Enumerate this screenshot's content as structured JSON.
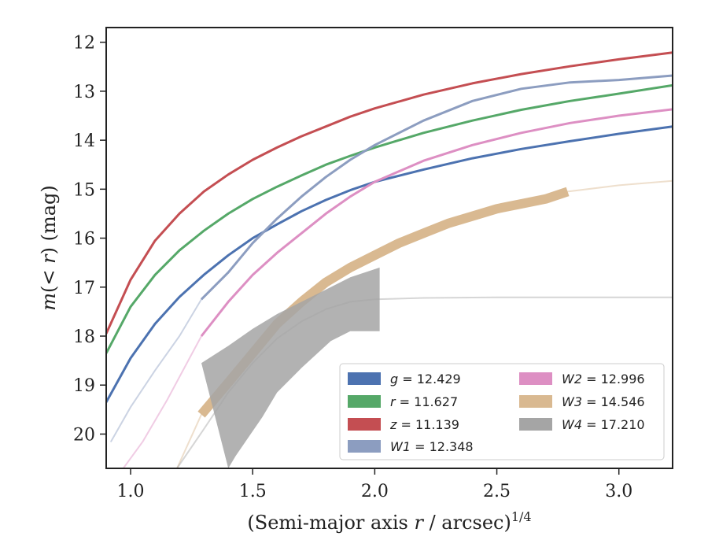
{
  "chart_data": {
    "type": "line",
    "xlabel": "(Semi-major axis r / arcsec)^{1/4}",
    "xlabel_parts": {
      "main": "(Semi-major axis ",
      "var": "r",
      "tail": " / arcsec)",
      "sup": "1/4"
    },
    "ylabel": "m(< r) (mag)",
    "ylabel_parts": {
      "m": "m",
      "open": "(",
      "lt": "< ",
      "var": "r",
      "close": ")",
      "unit": " (mag)"
    },
    "xlim": [
      0.9,
      3.22
    ],
    "ylim": [
      20.7,
      11.7
    ],
    "y_inverted": true,
    "xticks": [
      1.0,
      1.5,
      2.0,
      2.5,
      3.0
    ],
    "xtick_labels": [
      "1.0",
      "1.5",
      "2.0",
      "2.5",
      "3.0"
    ],
    "yticks": [
      12,
      13,
      14,
      15,
      16,
      17,
      18,
      19,
      20
    ],
    "ytick_labels": [
      "12",
      "13",
      "14",
      "15",
      "16",
      "17",
      "18",
      "19",
      "20"
    ],
    "grid": false,
    "legend_position": "lower-right",
    "series": [
      {
        "name": "g",
        "label": "g = 12.429",
        "color": "#4c72b0",
        "band_width": 3,
        "x": [
          0.9,
          1.0,
          1.1,
          1.2,
          1.3,
          1.4,
          1.5,
          1.6,
          1.7,
          1.8,
          1.9,
          2.0,
          2.2,
          2.4,
          2.6,
          2.8,
          3.0,
          3.22
        ],
        "y": [
          19.35,
          18.45,
          17.75,
          17.2,
          16.75,
          16.35,
          16.0,
          15.72,
          15.45,
          15.22,
          15.02,
          14.85,
          14.6,
          14.37,
          14.18,
          14.02,
          13.87,
          13.72
        ],
        "faint_x": [],
        "faint_y": []
      },
      {
        "name": "r",
        "label": "r = 11.627",
        "color": "#55a868",
        "band_width": 3,
        "x": [
          0.9,
          1.0,
          1.1,
          1.2,
          1.3,
          1.4,
          1.5,
          1.6,
          1.7,
          1.8,
          1.9,
          2.0,
          2.2,
          2.4,
          2.6,
          2.8,
          3.0,
          3.22
        ],
        "y": [
          18.35,
          17.4,
          16.75,
          16.25,
          15.85,
          15.5,
          15.2,
          14.95,
          14.72,
          14.5,
          14.32,
          14.15,
          13.85,
          13.6,
          13.38,
          13.2,
          13.05,
          12.88
        ],
        "faint_x": [],
        "faint_y": []
      },
      {
        "name": "z",
        "label": "z = 11.139",
        "color": "#c44e52",
        "band_width": 3,
        "x": [
          0.9,
          1.0,
          1.1,
          1.2,
          1.3,
          1.4,
          1.5,
          1.6,
          1.7,
          1.8,
          1.9,
          2.0,
          2.2,
          2.4,
          2.6,
          2.8,
          3.0,
          3.22
        ],
        "y": [
          17.95,
          16.85,
          16.05,
          15.5,
          15.05,
          14.7,
          14.4,
          14.15,
          13.92,
          13.72,
          13.52,
          13.35,
          13.07,
          12.84,
          12.65,
          12.49,
          12.35,
          12.21
        ],
        "faint_x": [],
        "faint_y": []
      },
      {
        "name": "W1",
        "label": "W1 = 12.348",
        "color": "#8c9dc0",
        "band_width": 3,
        "x": [
          1.29,
          1.4,
          1.5,
          1.6,
          1.7,
          1.8,
          1.9,
          2.0,
          2.2,
          2.4,
          2.6,
          2.8,
          3.0,
          3.22
        ],
        "y": [
          17.25,
          16.7,
          16.1,
          15.6,
          15.15,
          14.75,
          14.4,
          14.1,
          13.6,
          13.2,
          13.2,
          13.0,
          12.85,
          12.7
        ],
        "y_fix": [
          17.25,
          16.7,
          16.1,
          15.6,
          15.15,
          14.75,
          14.4,
          14.1,
          13.6,
          13.2,
          12.95,
          12.82,
          12.77,
          12.68
        ],
        "faint_x": [
          0.92,
          1.0,
          1.1,
          1.2,
          1.29
        ],
        "faint_y": [
          20.15,
          19.45,
          18.7,
          18.0,
          17.25
        ]
      },
      {
        "name": "W2",
        "label": "W2 = 12.996",
        "color": "#dd8fc3",
        "band_width": 3,
        "x": [
          1.29,
          1.4,
          1.5,
          1.6,
          1.7,
          1.8,
          1.9,
          2.0,
          2.2,
          2.4,
          2.6,
          2.8,
          3.0,
          3.22
        ],
        "y": [
          18.0,
          17.3,
          16.75,
          16.3,
          15.9,
          15.5,
          15.15,
          14.85,
          14.42,
          14.1,
          13.85,
          13.65,
          13.5,
          13.37
        ],
        "faint_x": [
          0.97,
          1.05,
          1.15,
          1.22,
          1.29
        ],
        "faint_y": [
          20.7,
          20.15,
          19.3,
          18.65,
          18.0
        ]
      },
      {
        "name": "W3",
        "label": "W3 = 14.546",
        "color": "#d9b991",
        "band_width": 12,
        "x": [
          1.29,
          1.4,
          1.5,
          1.6,
          1.7,
          1.8,
          1.9,
          2.0,
          2.1,
          2.2,
          2.3,
          2.4,
          2.5,
          2.6,
          2.7,
          2.79
        ],
        "y": [
          19.6,
          18.95,
          18.35,
          17.75,
          17.3,
          16.9,
          16.6,
          16.35,
          16.1,
          15.9,
          15.7,
          15.55,
          15.4,
          15.3,
          15.2,
          15.05
        ],
        "faint_x": [
          1.19,
          1.29,
          1.4,
          1.5,
          1.6,
          1.7,
          1.8,
          1.9,
          2.0,
          2.1,
          2.2,
          2.3,
          2.4,
          2.5,
          2.6,
          2.79,
          3.0,
          3.22
        ],
        "faint_y": [
          20.7,
          19.6,
          18.95,
          18.35,
          17.75,
          17.3,
          16.9,
          16.6,
          16.35,
          16.1,
          15.9,
          15.7,
          15.55,
          15.4,
          15.3,
          15.05,
          14.92,
          14.83
        ]
      },
      {
        "name": "W4",
        "label": "W4 = 17.210",
        "color": "#a5a5a5",
        "band_upper_x": [
          1.29,
          1.4,
          1.5,
          1.6,
          1.7,
          1.8,
          1.9,
          2.02
        ],
        "band_upper_y": [
          18.55,
          18.2,
          17.85,
          17.55,
          17.3,
          17.05,
          16.8,
          16.6
        ],
        "band_lower_x": [
          2.02,
          1.9,
          1.82,
          1.7,
          1.6,
          1.54,
          1.43,
          1.4
        ],
        "band_lower_y": [
          17.9,
          17.9,
          18.1,
          18.65,
          19.15,
          19.65,
          20.45,
          20.7
        ],
        "faint_x": [
          1.19,
          1.3,
          1.4,
          1.5,
          1.6,
          1.7,
          1.8,
          1.9,
          2.0,
          2.2,
          2.5,
          3.0,
          3.22
        ],
        "faint_y": [
          20.7,
          19.9,
          19.15,
          18.55,
          18.05,
          17.7,
          17.45,
          17.3,
          17.25,
          17.22,
          17.21,
          17.21,
          17.21
        ]
      }
    ],
    "legend": [
      {
        "label_var": "g",
        "label_rest": " = 12.429",
        "color": "#4c72b0"
      },
      {
        "label_var": "r",
        "label_rest": " = 11.627",
        "color": "#55a868"
      },
      {
        "label_var": "z",
        "label_rest": " = 11.139",
        "color": "#c44e52"
      },
      {
        "label_var": "W1",
        "label_rest": " = 12.348",
        "color": "#8c9dc0"
      },
      {
        "label_var": "W2",
        "label_rest": " = 12.996",
        "color": "#dd8fc3"
      },
      {
        "label_var": "W3",
        "label_rest": " = 14.546",
        "color": "#d9b991"
      },
      {
        "label_var": "W4",
        "label_rest": " = 17.210",
        "color": "#a5a5a5"
      }
    ]
  }
}
